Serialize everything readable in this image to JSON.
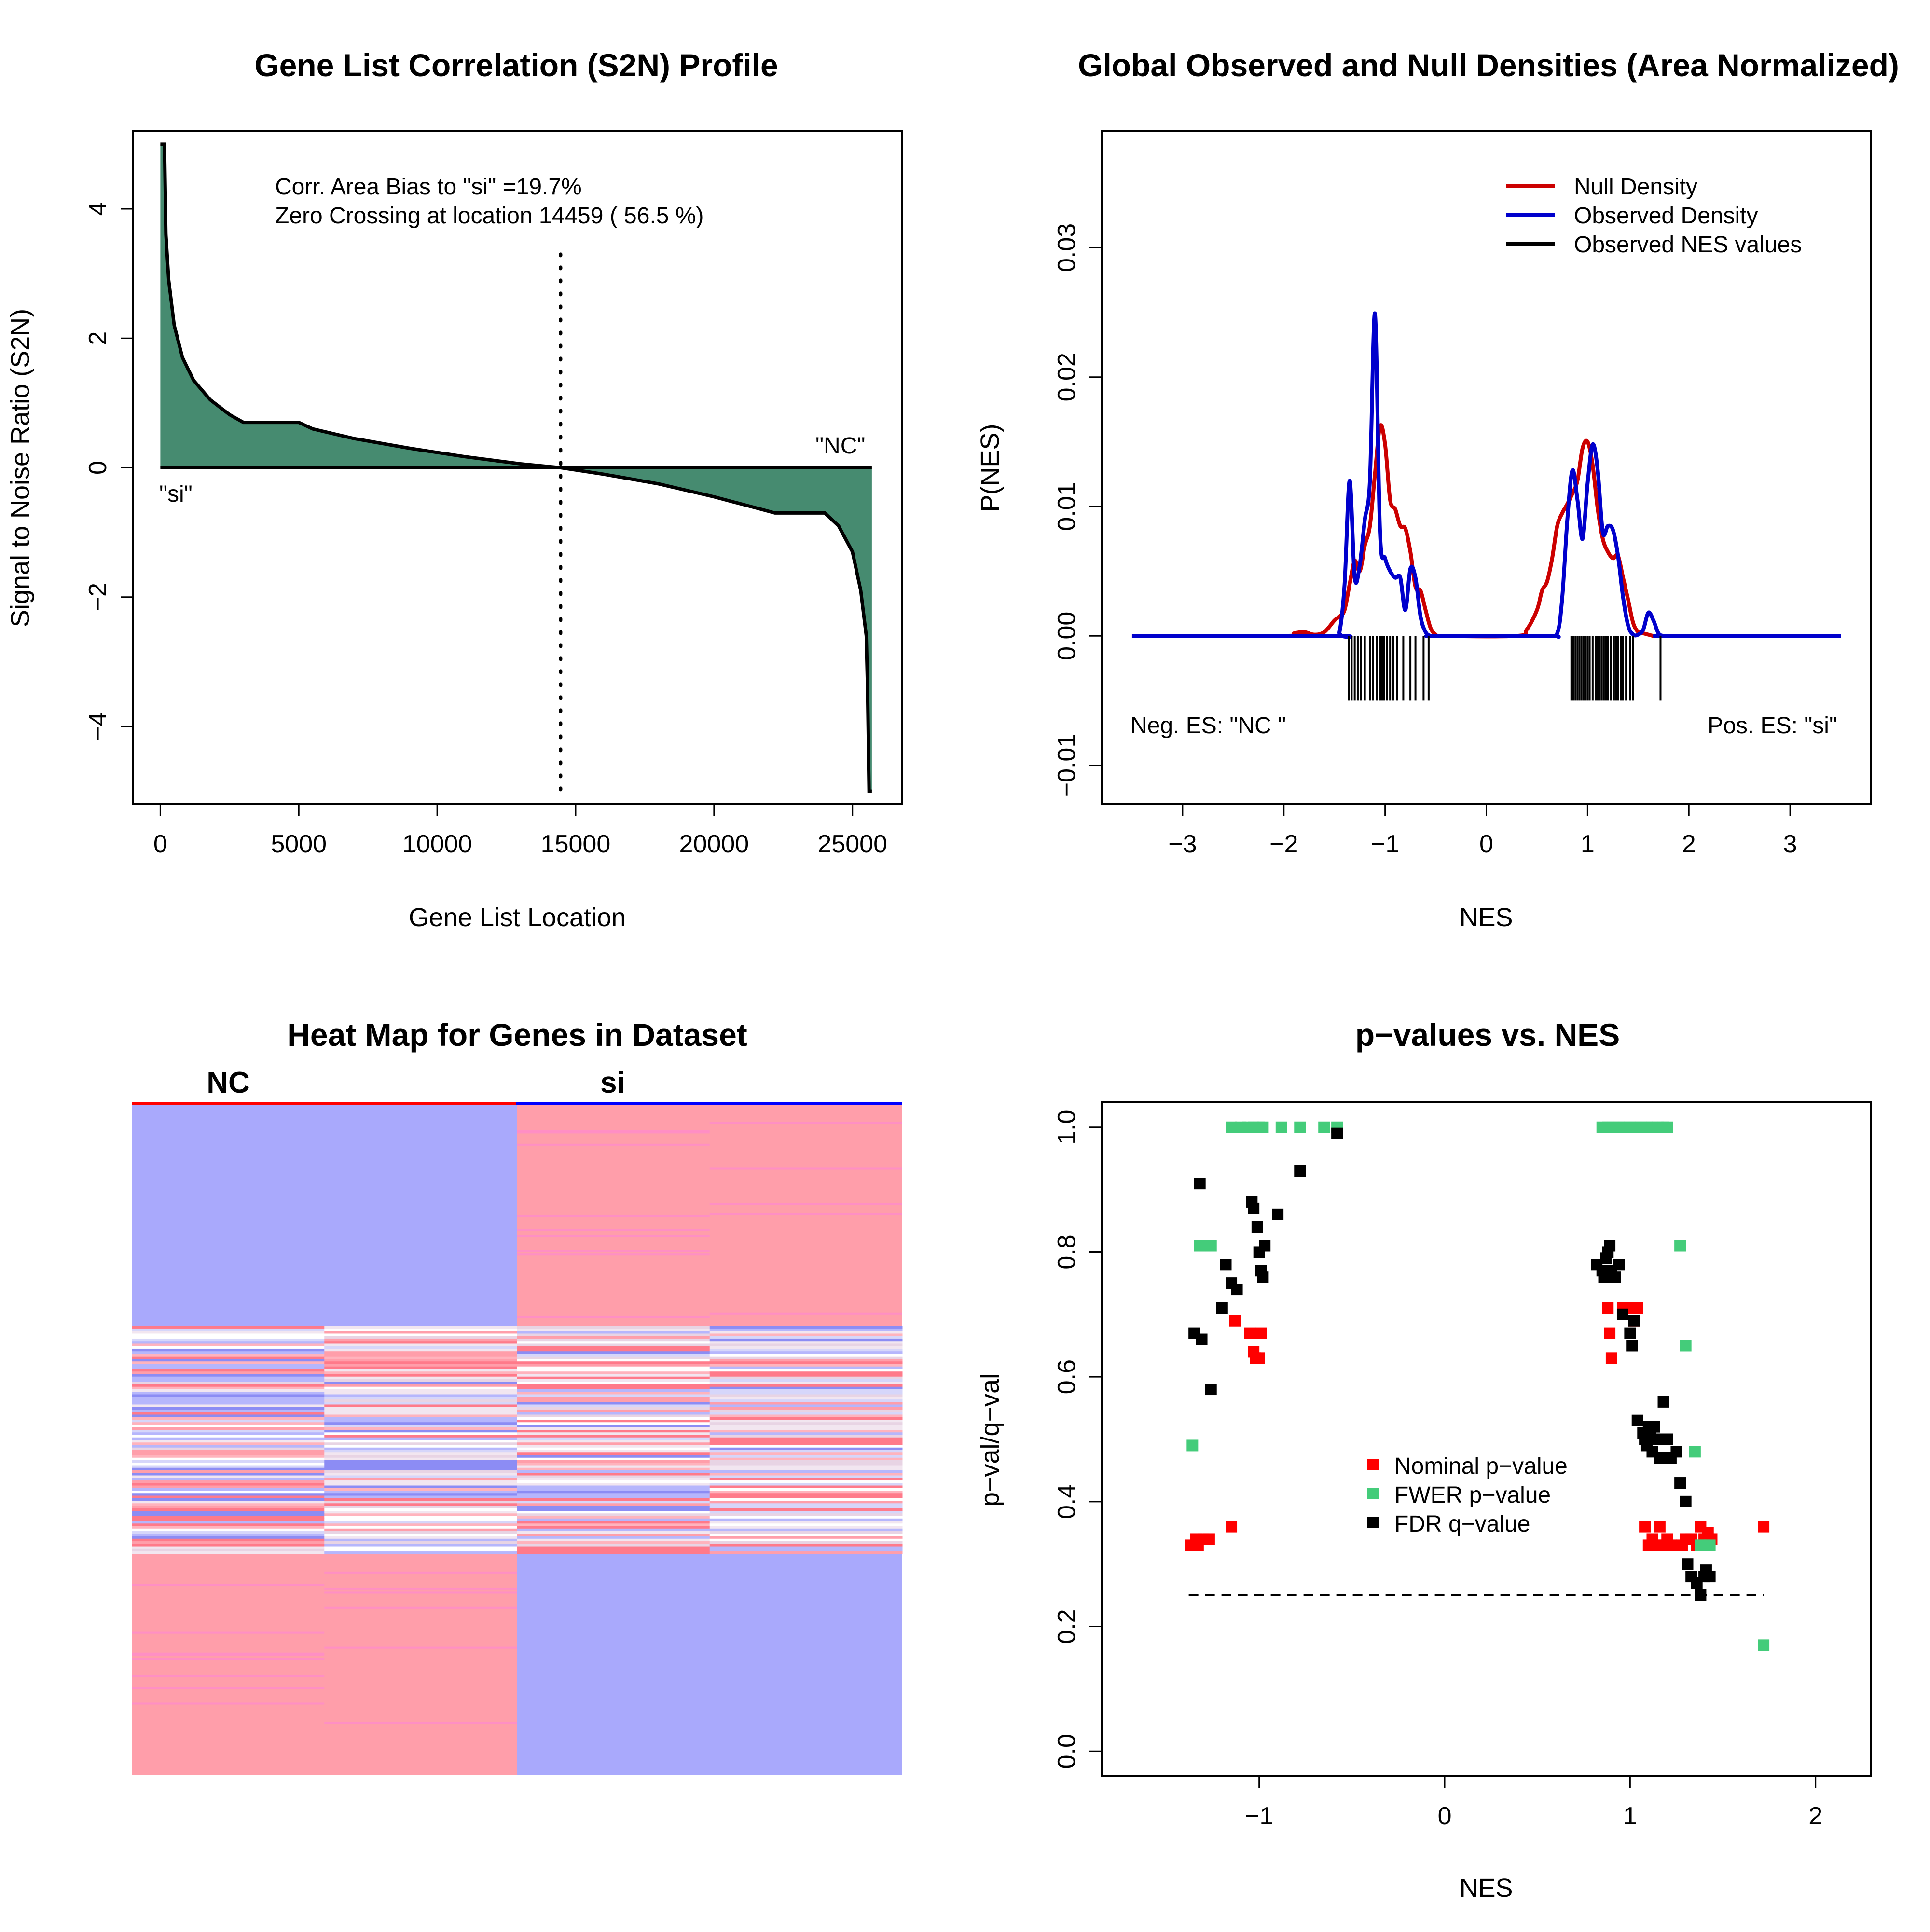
{
  "charts": {
    "s2n": {
      "title": "Gene List Correlation (S2N) Profile",
      "xlabel": "Gene List Location",
      "ylabel": "Signal to Noise Ratio (S2N)",
      "xticks": [
        "0",
        "5000",
        "10000",
        "15000",
        "20000",
        "25000"
      ],
      "yticks": [
        "−4",
        "−2",
        "0",
        "2",
        "4"
      ],
      "annotation_line1": "Corr. Area Bias to \"si\" =19.7%",
      "annotation_line2": "Zero Crossing at location  14459  ( 56.5  %)",
      "label_left": "\"si\"",
      "label_right": "\"NC\""
    },
    "density": {
      "title": "Global Observed and Null Densities (Area Normalized)",
      "xlabel": "NES",
      "ylabel": "P(NES)",
      "xticks": [
        "−3",
        "−2",
        "−1",
        "0",
        "1",
        "2",
        "3"
      ],
      "yticks": [
        "−0.01",
        "0.00",
        "0.01",
        "0.02",
        "0.03"
      ],
      "legend": [
        "Null Density",
        "Observed Density",
        "Observed NES values"
      ],
      "neg_label": "Neg. ES: \"NC \"",
      "pos_label": "Pos. ES: \"si\""
    },
    "heatmap": {
      "title": "Heat Map for Genes in Dataset",
      "group1": "NC",
      "group2": "si"
    },
    "pvalues": {
      "title": "p−values vs. NES",
      "xlabel": "NES",
      "ylabel": "p−val/q−val",
      "xticks": [
        "−1",
        "0",
        "1",
        "2"
      ],
      "yticks": [
        "0.0",
        "0.2",
        "0.4",
        "0.6",
        "0.8",
        "1.0"
      ],
      "legend": [
        "Nominal p−value",
        "FWER p−value",
        "FDR q−value"
      ]
    }
  },
  "colors": {
    "fill": "#468b70",
    "null_density": "#cc0000",
    "observed_density": "#0000cc",
    "nominal": "#ff0000",
    "fwer": "#44cc7a",
    "fdr": "#000000",
    "heat_red": "#ff9eaa",
    "heat_blue": "#a9a9fc"
  },
  "chart_data": [
    {
      "type": "area",
      "name": "s2n_profile",
      "xlim": [
        -1000,
        26800
      ],
      "ylim": [
        -5.2,
        5.2
      ],
      "zero_crossing": 14459,
      "x": [
        0,
        150,
        200,
        300,
        500,
        800,
        1200,
        1800,
        2500,
        3000,
        5000,
        5500,
        7000,
        9000,
        11000,
        13000,
        14459,
        16000,
        18000,
        20000,
        21500,
        22200,
        24000,
        24500,
        25000,
        25300,
        25500,
        25550,
        25600,
        25700
      ],
      "y": [
        5.0,
        5.0,
        3.6,
        2.9,
        2.2,
        1.7,
        1.35,
        1.05,
        0.82,
        0.7,
        0.7,
        0.6,
        0.45,
        0.3,
        0.17,
        0.06,
        0.0,
        -0.1,
        -0.25,
        -0.45,
        -0.62,
        -0.7,
        -0.7,
        -0.9,
        -1.3,
        -1.9,
        -2.6,
        -3.5,
        -5.0,
        -5.0
      ]
    },
    {
      "type": "line",
      "name": "density",
      "xlim": [
        -3.8,
        3.8
      ],
      "ylim": [
        -0.013,
        0.039
      ],
      "series": [
        {
          "name": "Null Density",
          "x": [
            -3.5,
            -2.0,
            -1.9,
            -1.8,
            -1.7,
            -1.6,
            -1.5,
            -1.45,
            -1.4,
            -1.35,
            -1.3,
            -1.25,
            -1.2,
            -1.15,
            -1.1,
            -1.05,
            -1.0,
            -0.95,
            -0.9,
            -0.85,
            -0.8,
            -0.75,
            -0.7,
            -0.65,
            -0.6,
            -0.55,
            -0.5,
            -0.45,
            0.3,
            0.4,
            0.5,
            0.55,
            0.6,
            0.65,
            0.7,
            0.75,
            0.8,
            0.85,
            0.9,
            0.95,
            1.0,
            1.05,
            1.1,
            1.15,
            1.2,
            1.25,
            1.3,
            1.35,
            1.4,
            1.45,
            1.5,
            1.55,
            1.6,
            1.65,
            1.7,
            1.8,
            3.5
          ],
          "y": [
            0,
            0,
            0.0002,
            0.0003,
            0.0001,
            0.0003,
            0.0012,
            0.0015,
            0.002,
            0.004,
            0.0058,
            0.005,
            0.007,
            0.0085,
            0.0125,
            0.0162,
            0.0148,
            0.0105,
            0.0098,
            0.0085,
            0.0083,
            0.0065,
            0.0038,
            0.0035,
            0.002,
            0.0006,
            0.0001,
            0,
            0,
            0.0005,
            0.002,
            0.0035,
            0.0042,
            0.006,
            0.0085,
            0.0095,
            0.0102,
            0.011,
            0.012,
            0.0145,
            0.015,
            0.0132,
            0.0098,
            0.0075,
            0.0065,
            0.006,
            0.0062,
            0.0045,
            0.0028,
            0.001,
            0.0003,
            0.0002,
            0.0001,
            0,
            0,
            0,
            0
          ]
        },
        {
          "name": "Observed Density",
          "x": [
            -3.5,
            -1.5,
            -1.45,
            -1.4,
            -1.35,
            -1.3,
            -1.25,
            -1.2,
            -1.15,
            -1.1,
            -1.05,
            -1.0,
            -0.95,
            -0.9,
            -0.85,
            -0.8,
            -0.75,
            -0.7,
            -0.65,
            -0.6,
            -0.55,
            -0.5,
            0.6,
            0.7,
            0.75,
            0.8,
            0.85,
            0.9,
            0.95,
            1.0,
            1.05,
            1.1,
            1.15,
            1.2,
            1.25,
            1.3,
            1.35,
            1.4,
            1.45,
            1.5,
            1.55,
            1.6,
            1.65,
            1.7,
            1.75,
            1.8,
            3.5
          ],
          "y": [
            0,
            0,
            0.0003,
            0.004,
            0.012,
            0.0045,
            0.0055,
            0.009,
            0.012,
            0.0249,
            0.008,
            0.006,
            0.005,
            0.0045,
            0.0045,
            0.002,
            0.0052,
            0.0045,
            0.0015,
            0.0003,
            0,
            0,
            0,
            0.0002,
            0.003,
            0.009,
            0.0128,
            0.0105,
            0.0075,
            0.0118,
            0.0148,
            0.0128,
            0.008,
            0.0085,
            0.0082,
            0.0062,
            0.003,
            0.0008,
            0.0001,
            0.0001,
            0.0005,
            0.0018,
            0.0012,
            0.0002,
            0,
            0,
            0
          ]
        }
      ],
      "observed_nes": [
        -1.36,
        -1.33,
        -1.3,
        -1.27,
        -1.24,
        -1.2,
        -1.15,
        -1.12,
        -1.08,
        -1.05,
        -1.03,
        -1.01,
        -0.98,
        -0.95,
        -0.92,
        -0.88,
        -0.82,
        -0.75,
        -0.7,
        -0.62,
        -0.57,
        0.84,
        0.86,
        0.88,
        0.9,
        0.92,
        0.94,
        0.96,
        0.98,
        1.0,
        1.02,
        1.05,
        1.08,
        1.1,
        1.12,
        1.14,
        1.16,
        1.18,
        1.2,
        1.23,
        1.26,
        1.28,
        1.3,
        1.33,
        1.35,
        1.38,
        1.42,
        1.45,
        1.72
      ]
    },
    {
      "type": "heatmap",
      "name": "heatmap",
      "columns": [
        "NC",
        "NC",
        "si",
        "si"
      ],
      "blocks": [
        {
          "fraction": 0.33,
          "values": [
            -1,
            -1,
            1,
            1
          ]
        },
        {
          "fraction": 0.34,
          "values": [
            "mixed",
            "mixed",
            "mixed",
            "mixed"
          ]
        },
        {
          "fraction": 0.33,
          "values": [
            1,
            1,
            -1,
            -1
          ]
        }
      ]
    },
    {
      "type": "scatter",
      "name": "pvalues",
      "xlim": [
        -1.85,
        2.3
      ],
      "ylim": [
        -0.04,
        1.04
      ],
      "threshold": {
        "y": 0.25,
        "x": [
          -1.38,
          1.72
        ]
      },
      "series": [
        {
          "name": "Nominal p−value",
          "x": [
            -1.37,
            -1.34,
            -1.33,
            -1.3,
            -1.27,
            -1.15,
            -1.13,
            -1.05,
            -1.03,
            -1.02,
            -1.0,
            -0.99,
            0.88,
            0.89,
            0.9,
            0.96,
            0.99,
            1.0,
            1.02,
            1.04,
            1.08,
            1.1,
            1.12,
            1.14,
            1.16,
            1.18,
            1.2,
            1.22,
            1.28,
            1.3,
            1.33,
            1.36,
            1.38,
            1.4,
            1.42,
            1.44,
            1.72
          ],
          "y": [
            0.33,
            0.34,
            0.33,
            0.34,
            0.34,
            0.36,
            0.69,
            0.67,
            0.64,
            0.63,
            0.63,
            0.67,
            0.71,
            0.67,
            0.63,
            0.71,
            0.71,
            0.71,
            0.69,
            0.71,
            0.36,
            0.33,
            0.34,
            0.33,
            0.36,
            0.33,
            0.34,
            0.33,
            0.33,
            0.34,
            0.34,
            0.33,
            0.36,
            0.34,
            0.35,
            0.34,
            0.36
          ]
        },
        {
          "name": "FWER p−value",
          "x": [
            -1.36,
            -1.32,
            -1.29,
            -1.26,
            -1.15,
            -1.1,
            -1.06,
            -1.03,
            -1.0,
            -0.98,
            -0.88,
            -0.78,
            -0.65,
            -0.58,
            0.85,
            0.88,
            0.91,
            0.94,
            0.97,
            1.0,
            1.03,
            1.06,
            1.09,
            1.12,
            1.15,
            1.18,
            1.2,
            1.27,
            1.3,
            1.35,
            1.38,
            1.4,
            1.43,
            1.72
          ],
          "y": [
            0.49,
            0.81,
            0.81,
            0.81,
            1.0,
            1.0,
            1.0,
            1.0,
            1.0,
            1.0,
            1.0,
            1.0,
            1.0,
            1.0,
            1.0,
            1.0,
            1.0,
            1.0,
            1.0,
            1.0,
            1.0,
            1.0,
            1.0,
            1.0,
            1.0,
            1.0,
            1.0,
            0.81,
            0.65,
            0.48,
            0.33,
            0.33,
            0.33,
            0.17
          ]
        },
        {
          "name": "FDR q−value",
          "x": [
            -1.35,
            -1.32,
            -1.31,
            -1.26,
            -1.2,
            -1.18,
            -1.15,
            -1.12,
            -1.04,
            -1.03,
            -1.01,
            -1.0,
            -0.99,
            -0.98,
            -0.97,
            -0.9,
            -0.78,
            -0.58,
            0.82,
            0.85,
            0.86,
            0.87,
            0.88,
            0.89,
            0.9,
            0.92,
            0.94,
            0.96,
            1.0,
            1.01,
            1.02,
            1.04,
            1.07,
            1.08,
            1.09,
            1.1,
            1.11,
            1.12,
            1.13,
            1.14,
            1.15,
            1.16,
            1.18,
            1.2,
            1.22,
            1.25,
            1.27,
            1.3,
            1.31,
            1.33,
            1.36,
            1.38,
            1.4,
            1.41,
            1.43
          ],
          "y": [
            0.67,
            0.91,
            0.66,
            0.58,
            0.71,
            0.78,
            0.75,
            0.74,
            0.88,
            0.87,
            0.84,
            0.8,
            0.77,
            0.76,
            0.81,
            0.86,
            0.93,
            0.99,
            0.78,
            0.77,
            0.76,
            0.79,
            0.8,
            0.81,
            0.77,
            0.76,
            0.78,
            0.7,
            0.67,
            0.65,
            0.69,
            0.53,
            0.51,
            0.5,
            0.49,
            0.52,
            0.51,
            0.48,
            0.52,
            0.5,
            0.5,
            0.47,
            0.56,
            0.5,
            0.47,
            0.48,
            0.43,
            0.4,
            0.3,
            0.28,
            0.27,
            0.25,
            0.28,
            0.29,
            0.28
          ]
        }
      ]
    }
  ]
}
